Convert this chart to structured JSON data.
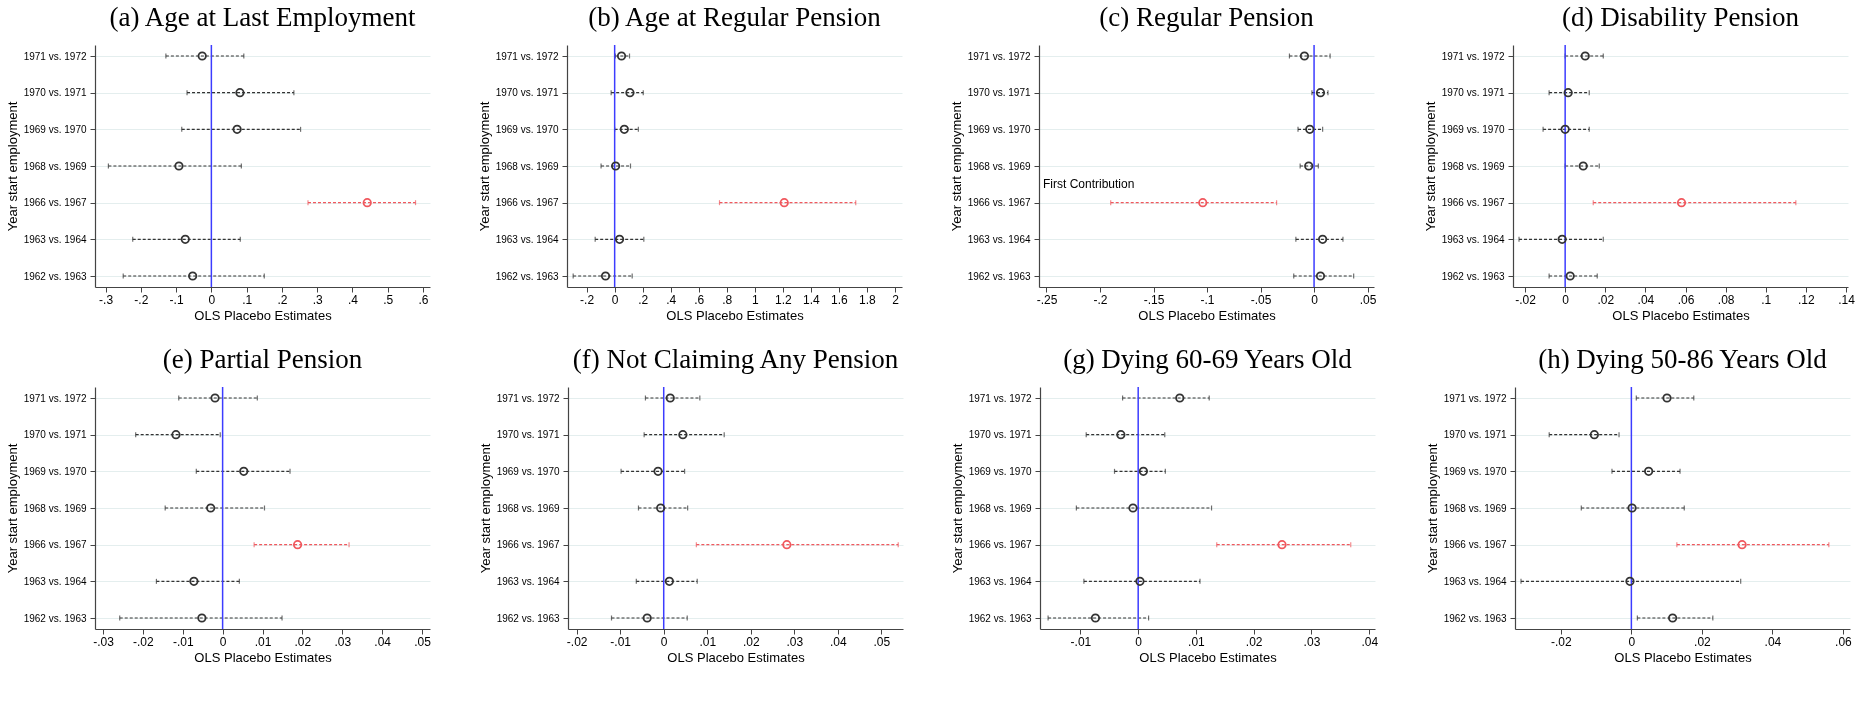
{
  "chart_data": [
    {
      "type": "scatter",
      "orientation": "horizontal",
      "title": "(a) Age at Last Employment",
      "xlabel": "OLS Placebo Estimates",
      "ylabel": "Year start employment",
      "grid": "y",
      "marker": "circle",
      "line_style": "dashed",
      "categories": [
        "1971 vs. 1972",
        "1970 vs. 1971",
        "1969 vs. 1970",
        "1968 vs. 1969",
        "1966 vs. 1967",
        "1963 vs. 1964",
        "1962 vs. 1963"
      ],
      "series": [
        {
          "color": "#333333",
          "values": [
            -0.026,
            0.081,
            0.073,
            -0.092,
            null,
            -0.074,
            -0.053
          ],
          "errors": [
            [
              -0.129,
              0.092
            ],
            [
              -0.069,
              0.234
            ],
            [
              -0.084,
              0.253
            ],
            [
              -0.292,
              0.085
            ],
            null,
            [
              -0.223,
              0.082
            ],
            [
              -0.25,
              0.15
            ]
          ]
        },
        {
          "color": "#f0585e",
          "values": [
            null,
            null,
            null,
            null,
            0.442,
            null,
            null
          ],
          "errors": [
            null,
            null,
            null,
            null,
            [
              0.274,
              0.579
            ],
            null,
            null
          ]
        }
      ],
      "xlim": [
        -0.33,
        0.62
      ],
      "xticks": [
        {
          "value": -0.3,
          "label": "-.3"
        },
        {
          "value": -0.2,
          "label": "-.2"
        },
        {
          "value": -0.1,
          "label": "-.1"
        },
        0,
        {
          "value": 0.1,
          "label": ".1"
        },
        {
          "value": 0.2,
          "label": ".2"
        },
        {
          "value": 0.3,
          "label": ".3"
        },
        {
          "value": 0.4,
          "label": ".4"
        },
        {
          "value": 0.5,
          "label": ".5"
        },
        {
          "value": 0.6,
          "label": ".6"
        }
      ],
      "ref_lines": [
        {
          "axis": "x",
          "value": 0,
          "color": "#3c3cff"
        }
      ]
    },
    {
      "type": "scatter",
      "orientation": "horizontal",
      "title": "(b) Age at Regular Pension",
      "xlabel": "OLS Placebo Estimates",
      "ylabel": "Year start employment",
      "grid": "y",
      "marker": "circle",
      "line_style": "dashed",
      "categories": [
        "1971 vs. 1972",
        "1970 vs. 1971",
        "1969 vs. 1970",
        "1968 vs. 1969",
        "1966 vs. 1967",
        "1963 vs. 1964",
        "1962 vs. 1963"
      ],
      "series": [
        {
          "color": "#333333",
          "values": [
            0.049,
            0.109,
            0.069,
            0.007,
            null,
            0.035,
            -0.065
          ],
          "errors": [
            [
              0.005,
              0.106
            ],
            [
              -0.025,
              0.204
            ],
            [
              0.0,
              0.169
            ],
            [
              -0.097,
              0.113
            ],
            null,
            [
              -0.139,
              0.208
            ],
            [
              -0.296,
              0.125
            ]
          ]
        },
        {
          "color": "#f0585e",
          "values": [
            null,
            null,
            null,
            null,
            1.21,
            null,
            null
          ],
          "errors": [
            null,
            null,
            null,
            null,
            [
              0.748,
              1.72
            ],
            null,
            null
          ]
        }
      ],
      "xlim": [
        -0.34,
        2.05
      ],
      "xticks": [
        {
          "value": -0.2,
          "label": "-.2"
        },
        0,
        {
          "value": 0.2,
          "label": ".2"
        },
        {
          "value": 0.4,
          "label": ".4"
        },
        {
          "value": 0.6,
          "label": ".6"
        },
        {
          "value": 0.8,
          "label": ".8"
        },
        1,
        1.2,
        1.4,
        1.6,
        1.8,
        2
      ],
      "ref_lines": [
        {
          "axis": "x",
          "value": 0,
          "color": "#3c3cff"
        }
      ]
    },
    {
      "type": "scatter",
      "orientation": "horizontal",
      "title": "(c) Regular Pension",
      "xlabel": "OLS Placebo Estimates",
      "ylabel": "Year start employment",
      "grid": "y",
      "marker": "circle",
      "line_style": "dashed",
      "categories": [
        "1971 vs. 1972",
        "1970 vs. 1971",
        "1969 vs. 1970",
        "1968 vs. 1969",
        "1966 vs. 1967",
        "1963 vs. 1964",
        "1962 vs. 1963"
      ],
      "series": [
        {
          "color": "#333333",
          "values": [
            -0.009,
            0.006,
            -0.004,
            -0.005,
            null,
            0.008,
            0.006
          ],
          "errors": [
            [
              -0.023,
              0.015
            ],
            [
              -0.002,
              0.013
            ],
            [
              -0.015,
              0.008
            ],
            [
              -0.013,
              0.004
            ],
            null,
            [
              -0.017,
              0.027
            ],
            [
              -0.019,
              0.037
            ]
          ]
        },
        {
          "color": "#f0585e",
          "values": [
            null,
            null,
            null,
            null,
            -0.104,
            null,
            null
          ],
          "errors": [
            null,
            null,
            null,
            null,
            [
              -0.19,
              -0.035
            ],
            null,
            null
          ]
        }
      ],
      "xlim": [
        -0.257,
        0.056
      ],
      "xticks": [
        {
          "value": -0.25,
          "label": "-.25"
        },
        {
          "value": -0.2,
          "label": "-.2"
        },
        {
          "value": -0.15,
          "label": "-.15"
        },
        {
          "value": -0.1,
          "label": "-.1"
        },
        {
          "value": -0.05,
          "label": "-.05"
        },
        0,
        {
          "value": 0.05,
          "label": ".05"
        }
      ],
      "ref_lines": [
        {
          "axis": "x",
          "value": 0,
          "color": "#3c3cff"
        }
      ],
      "annotations": [
        "First Contribution"
      ]
    },
    {
      "type": "scatter",
      "orientation": "horizontal",
      "title": "(d) Disability Pension",
      "xlabel": "OLS Placebo Estimates",
      "ylabel": "Year start employment",
      "grid": "y",
      "marker": "circle",
      "line_style": "dashed",
      "categories": [
        "1971 vs. 1972",
        "1970 vs. 1971",
        "1969 vs. 1970",
        "1968 vs. 1969",
        "1966 vs. 1967",
        "1963 vs. 1964",
        "1962 vs. 1963"
      ],
      "series": [
        {
          "color": "#333333",
          "values": [
            0.01,
            0.0015,
            0.0,
            0.009,
            null,
            -0.0015,
            0.0025
          ],
          "errors": [
            [
              0.0,
              0.019
            ],
            [
              -0.008,
              0.012
            ],
            [
              -0.011,
              0.012
            ],
            [
              0.0,
              0.017
            ],
            null,
            [
              -0.023,
              0.019
            ],
            [
              -0.008,
              0.016
            ]
          ]
        },
        {
          "color": "#f0585e",
          "values": [
            null,
            null,
            null,
            null,
            0.058,
            null,
            null
          ],
          "errors": [
            null,
            null,
            null,
            null,
            [
              0.014,
              0.115
            ],
            null,
            null
          ]
        }
      ],
      "xlim": [
        -0.026,
        0.141
      ],
      "xticks": [
        {
          "value": -0.02,
          "label": "-.02"
        },
        0,
        {
          "value": 0.02,
          "label": ".02"
        },
        {
          "value": 0.04,
          "label": ".04"
        },
        {
          "value": 0.06,
          "label": ".06"
        },
        {
          "value": 0.08,
          "label": ".08"
        },
        {
          "value": 0.1,
          "label": ".1"
        },
        {
          "value": 0.12,
          "label": ".12"
        },
        {
          "value": 0.14,
          "label": ".14"
        }
      ],
      "ref_lines": [
        {
          "axis": "x",
          "value": 0,
          "color": "#3c3cff"
        }
      ]
    },
    {
      "type": "scatter",
      "orientation": "horizontal",
      "title": "(e) Partial Pension",
      "xlabel": "OLS Placebo Estimates",
      "ylabel": "Year start employment",
      "grid": "y",
      "marker": "circle",
      "line_style": "dashed",
      "categories": [
        "1971 vs. 1972",
        "1970 vs. 1971",
        "1969 vs. 1970",
        "1968 vs. 1969",
        "1966 vs. 1967",
        "1963 vs. 1964",
        "1962 vs. 1963"
      ],
      "series": [
        {
          "color": "#333333",
          "values": [
            -0.0019,
            -0.0117,
            0.0053,
            -0.003,
            null,
            -0.0072,
            -0.0052
          ],
          "errors": [
            [
              -0.011,
              0.0087
            ],
            [
              -0.0218,
              -0.0006
            ],
            [
              -0.0066,
              0.0169
            ],
            [
              -0.0144,
              0.0105
            ],
            null,
            [
              -0.0166,
              0.0042
            ],
            [
              -0.0258,
              0.0149
            ]
          ]
        },
        {
          "color": "#f0585e",
          "values": [
            null,
            null,
            null,
            null,
            0.0188,
            null,
            null
          ],
          "errors": [
            null,
            null,
            null,
            null,
            [
              0.0079,
              0.0317
            ],
            null,
            null
          ]
        }
      ],
      "xlim": [
        -0.032,
        0.052
      ],
      "xticks": [
        {
          "value": -0.03,
          "label": "-.03"
        },
        {
          "value": -0.02,
          "label": "-.02"
        },
        {
          "value": -0.01,
          "label": "-.01"
        },
        0,
        {
          "value": 0.01,
          "label": ".01"
        },
        {
          "value": 0.02,
          "label": ".02"
        },
        {
          "value": 0.03,
          "label": ".03"
        },
        {
          "value": 0.04,
          "label": ".04"
        },
        {
          "value": 0.05,
          "label": ".05"
        }
      ],
      "ref_lines": [
        {
          "axis": "x",
          "value": 0,
          "color": "#3c3cff"
        }
      ]
    },
    {
      "type": "scatter",
      "orientation": "horizontal",
      "title": "(f) Not Claiming Any Pension",
      "xlabel": "OLS Placebo Estimates",
      "ylabel": "Year start employment",
      "grid": "y",
      "marker": "circle",
      "line_style": "dashed",
      "categories": [
        "1971 vs. 1972",
        "1970 vs. 1971",
        "1969 vs. 1970",
        "1968 vs. 1969",
        "1966 vs. 1967",
        "1963 vs. 1964",
        "1962 vs. 1963"
      ],
      "series": [
        {
          "color": "#333333",
          "values": [
            0.0015,
            0.0044,
            -0.0013,
            -0.0007,
            null,
            0.0013,
            -0.0038
          ],
          "errors": [
            [
              -0.0042,
              0.0083
            ],
            [
              -0.0045,
              0.0139
            ],
            [
              -0.0098,
              0.0048
            ],
            [
              -0.0058,
              0.0055
            ],
            null,
            [
              -0.0063,
              0.0077
            ],
            [
              -0.012,
              0.0054
            ]
          ]
        },
        {
          "color": "#f0585e",
          "values": [
            null,
            null,
            null,
            null,
            0.0283,
            null,
            null
          ],
          "errors": [
            null,
            null,
            null,
            null,
            [
              0.0075,
              0.0539
            ],
            null,
            null
          ]
        }
      ],
      "xlim": [
        -0.022,
        0.055
      ],
      "xticks": [
        {
          "value": -0.02,
          "label": "-.02"
        },
        {
          "value": -0.01,
          "label": "-.01"
        },
        0,
        {
          "value": 0.01,
          "label": ".01"
        },
        {
          "value": 0.02,
          "label": ".02"
        },
        {
          "value": 0.03,
          "label": ".03"
        },
        {
          "value": 0.04,
          "label": ".04"
        },
        {
          "value": 0.05,
          "label": ".05"
        }
      ],
      "ref_lines": [
        {
          "axis": "x",
          "value": 0,
          "color": "#3c3cff"
        }
      ]
    },
    {
      "type": "scatter",
      "orientation": "horizontal",
      "title": "(g) Dying 60-69 Years Old",
      "xlabel": "OLS Placebo Estimates",
      "ylabel": "Year start employment",
      "grid": "y",
      "marker": "circle",
      "line_style": "dashed",
      "categories": [
        "1971 vs. 1972",
        "1970 vs. 1971",
        "1969 vs. 1970",
        "1968 vs. 1969",
        "1966 vs. 1967",
        "1963 vs. 1964",
        "1962 vs. 1963"
      ],
      "series": [
        {
          "color": "#333333",
          "values": [
            0.0072,
            -0.003,
            0.0009,
            -0.0009,
            null,
            0.0003,
            -0.0074
          ],
          "errors": [
            [
              -0.0027,
              0.0123
            ],
            [
              -0.009,
              0.0046
            ],
            [
              -0.0041,
              0.0047
            ],
            [
              -0.0107,
              0.0127
            ],
            null,
            [
              -0.0094,
              0.0107
            ],
            [
              -0.0156,
              0.0018
            ]
          ]
        },
        {
          "color": "#f0585e",
          "values": [
            null,
            null,
            null,
            null,
            0.0249,
            null,
            null
          ],
          "errors": [
            null,
            null,
            null,
            null,
            [
              0.0136,
              0.0368
            ],
            null,
            null
          ]
        }
      ],
      "xlim": [
        -0.017,
        0.041
      ],
      "xticks": [
        {
          "value": -0.01,
          "label": "-.01"
        },
        0,
        {
          "value": 0.01,
          "label": ".01"
        },
        {
          "value": 0.02,
          "label": ".02"
        },
        {
          "value": 0.03,
          "label": ".03"
        },
        {
          "value": 0.04,
          "label": ".04"
        }
      ],
      "ref_lines": [
        {
          "axis": "x",
          "value": 0,
          "color": "#3c3cff"
        }
      ]
    },
    {
      "type": "scatter",
      "orientation": "horizontal",
      "title": "(h) Dying 50-86 Years Old",
      "xlabel": "OLS Placebo Estimates",
      "ylabel": "Year start employment",
      "grid": "y",
      "marker": "circle",
      "line_style": "dashed",
      "categories": [
        "1971 vs. 1972",
        "1970 vs. 1971",
        "1969 vs. 1970",
        "1968 vs. 1969",
        "1966 vs. 1967",
        "1963 vs. 1964",
        "1962 vs. 1963"
      ],
      "series": [
        {
          "color": "#333333",
          "values": [
            0.0101,
            -0.0105,
            0.0049,
            0.0002,
            null,
            -0.0004,
            0.0117
          ],
          "errors": [
            [
              0.0014,
              0.0177
            ],
            [
              -0.0233,
              -0.0035
            ],
            [
              -0.0055,
              0.0138
            ],
            [
              -0.0142,
              0.015
            ],
            null,
            [
              -0.0313,
              0.031
            ],
            [
              0.0017,
              0.0231
            ]
          ]
        },
        {
          "color": "#f0585e",
          "values": [
            null,
            null,
            null,
            null,
            0.0314,
            null,
            null
          ],
          "errors": [
            null,
            null,
            null,
            null,
            [
              0.0129,
              0.056
            ],
            null,
            null
          ]
        }
      ],
      "xlim": [
        -0.033,
        0.062
      ],
      "xticks": [
        {
          "value": -0.02,
          "label": "-.02"
        },
        0,
        {
          "value": 0.02,
          "label": ".02"
        },
        {
          "value": 0.04,
          "label": ".04"
        },
        {
          "value": 0.06,
          "label": ".06"
        }
      ],
      "ref_lines": [
        {
          "axis": "x",
          "value": 0,
          "color": "#3c3cff"
        }
      ]
    }
  ]
}
